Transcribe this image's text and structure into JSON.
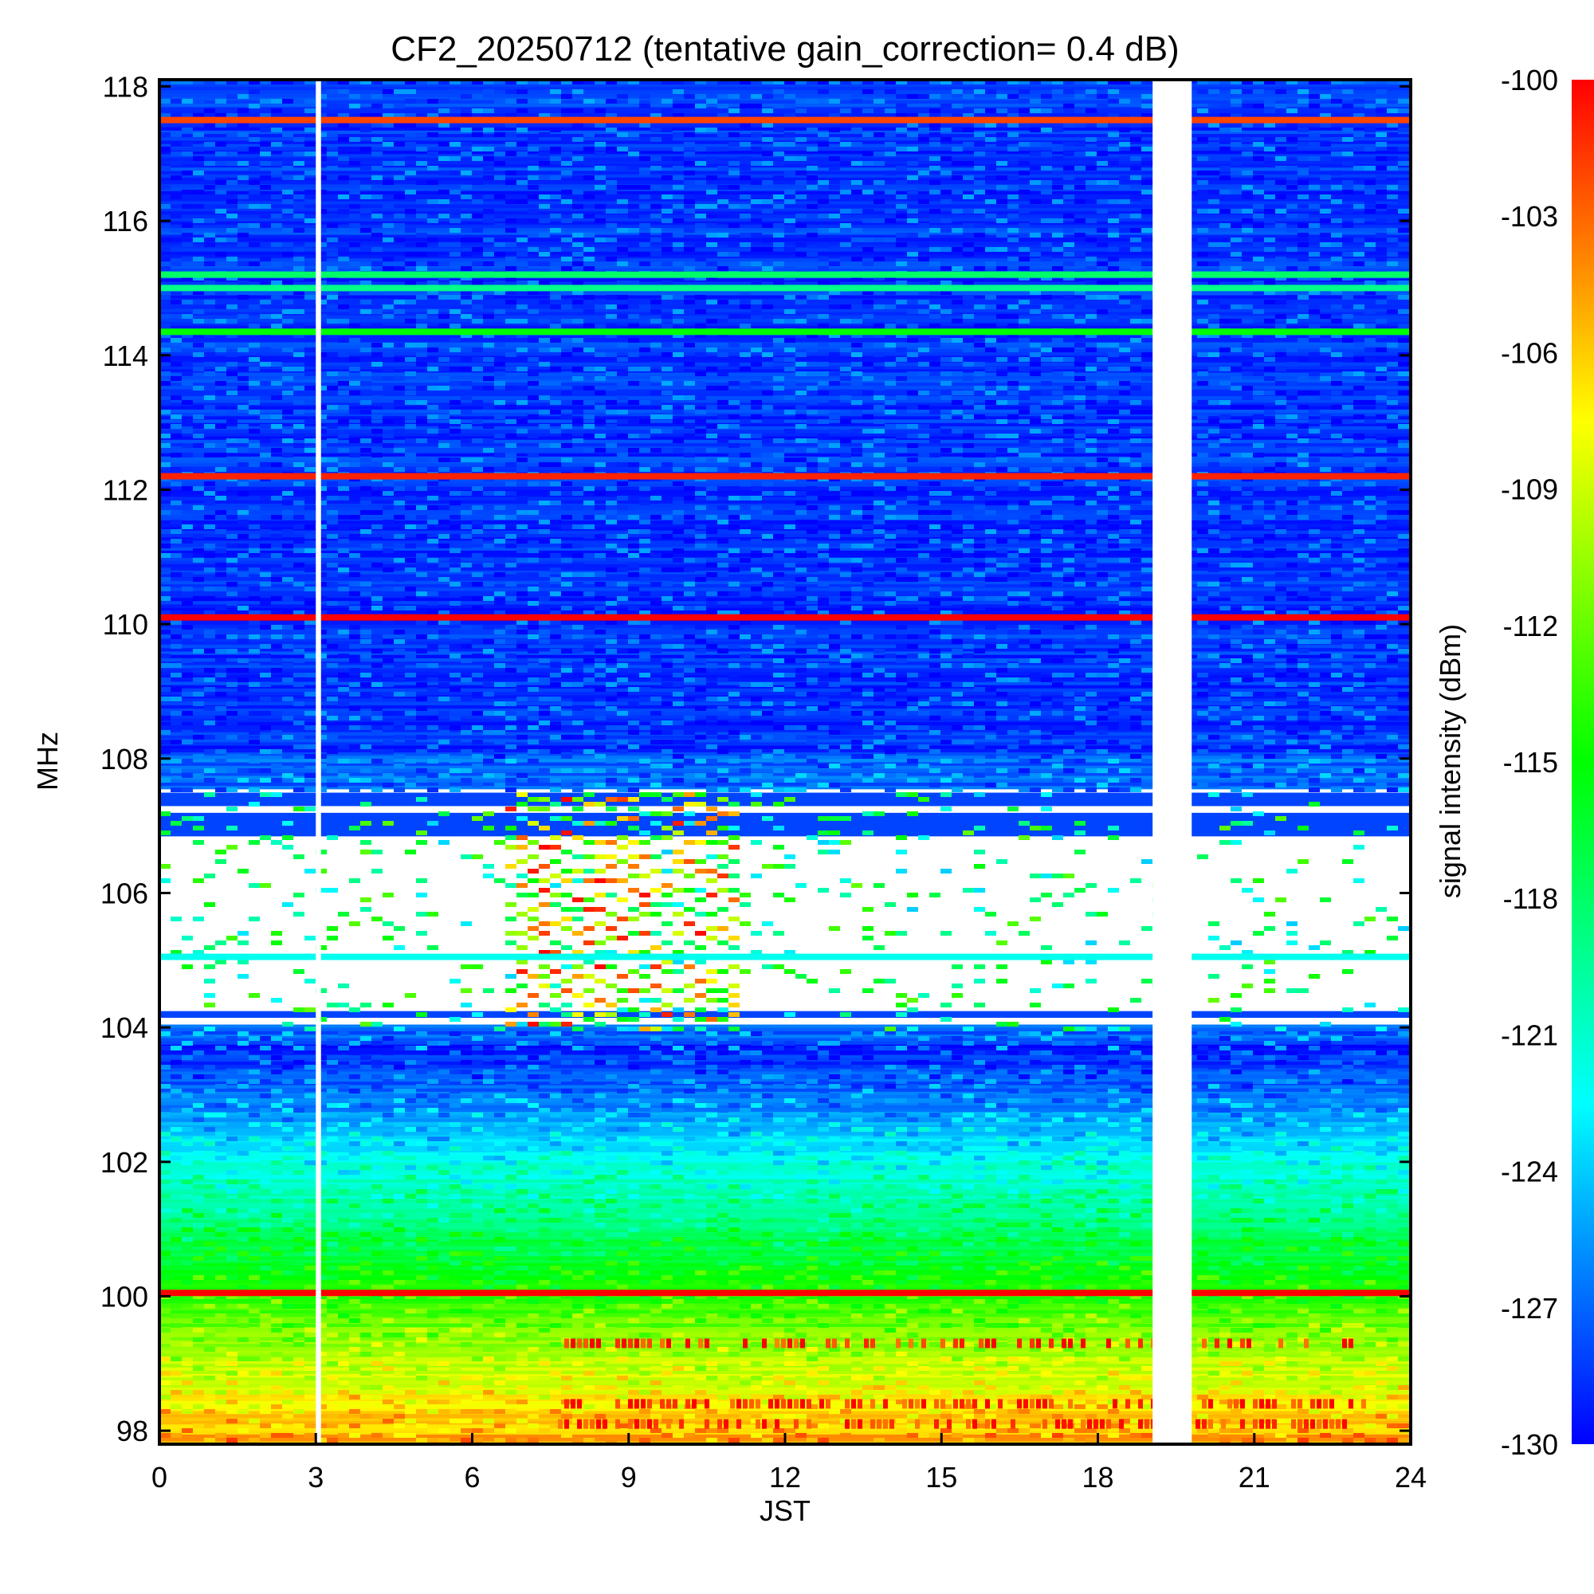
{
  "chart_data": {
    "type": "heatmap",
    "title": "CF2_20250712 (tentative gain_correction=  0.4 dB)",
    "xlabel": "JST",
    "ylabel": "MHz",
    "colorbar_label": "signal intensity (dBm)",
    "xlim": [
      0,
      24
    ],
    "ylim": [
      97.8,
      118.1
    ],
    "x_ticks": [
      0,
      3,
      6,
      9,
      12,
      15,
      18,
      21,
      24
    ],
    "y_ticks": [
      98,
      100,
      102,
      104,
      106,
      108,
      110,
      112,
      114,
      116,
      118
    ],
    "colorbar_range": [
      -130,
      -100
    ],
    "colorbar_ticks": [
      -100,
      -103,
      -106,
      -109,
      -112,
      -115,
      -118,
      -121,
      -124,
      -127,
      -130
    ],
    "colormap": [
      "#0000ff",
      "#00ffff",
      "#00ff00",
      "#ffff00",
      "#ff0000"
    ],
    "data_gaps_jst": [
      [
        3.0,
        3.1
      ],
      [
        19.05,
        19.8
      ]
    ],
    "strong_lines": [
      {
        "freq_mhz": 117.5,
        "level_dbm": -102
      },
      {
        "freq_mhz": 115.2,
        "level_dbm": -118
      },
      {
        "freq_mhz": 115.0,
        "level_dbm": -119
      },
      {
        "freq_mhz": 114.35,
        "level_dbm": -115
      },
      {
        "freq_mhz": 112.2,
        "level_dbm": -101
      },
      {
        "freq_mhz": 110.1,
        "level_dbm": -100
      },
      {
        "freq_mhz": 105.05,
        "level_dbm": -122
      },
      {
        "freq_mhz": 100.05,
        "level_dbm": -100
      }
    ],
    "sparse_band_mhz": [
      104.0,
      107.5
    ],
    "activity_window_jst": [
      6.5,
      11.0
    ]
  }
}
